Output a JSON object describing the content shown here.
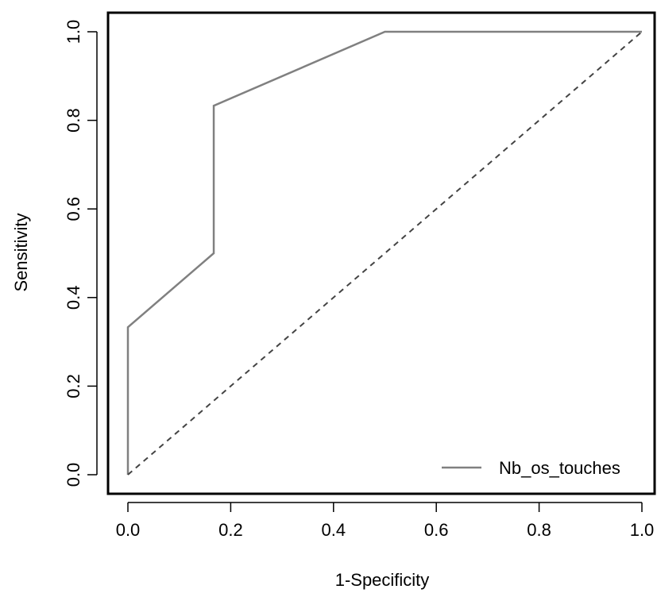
{
  "chart_data": {
    "type": "line",
    "title": "",
    "xlabel": "1-Specificity",
    "ylabel": "Sensitivity",
    "xlim": [
      0,
      1
    ],
    "ylim": [
      0,
      1
    ],
    "xticks": [
      "0.0",
      "0.2",
      "0.4",
      "0.6",
      "0.8",
      "1.0"
    ],
    "yticks": [
      "0.0",
      "0.2",
      "0.4",
      "0.6",
      "0.8",
      "1.0"
    ],
    "grid": false,
    "legend_position": "bottom-right",
    "series": [
      {
        "name": "Nb_os_touches",
        "color": "#808080",
        "line_style": "solid",
        "x": [
          0,
          0,
          0.167,
          0.167,
          0.5,
          1
        ],
        "y": [
          0,
          0.333,
          0.5,
          0.833,
          1,
          1
        ]
      },
      {
        "color": "#444444",
        "line_style": "dashed",
        "x": [
          0,
          1
        ],
        "y": [
          0,
          1
        ]
      }
    ]
  }
}
